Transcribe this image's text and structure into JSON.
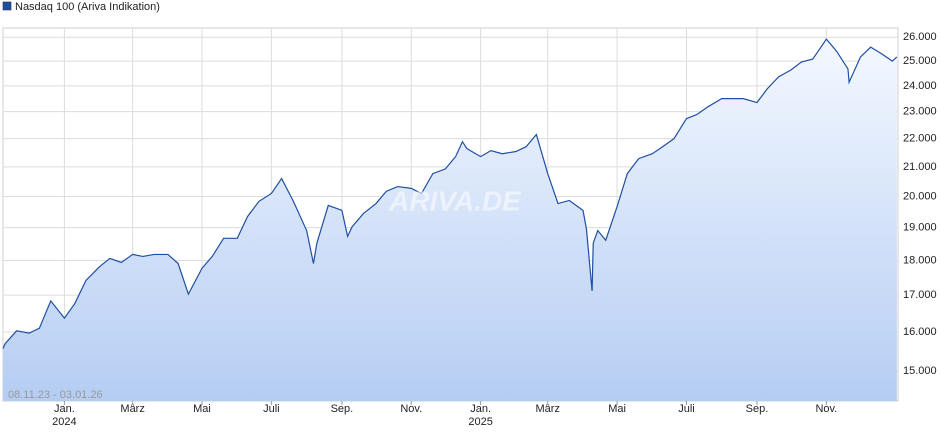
{
  "chart_data": {
    "type": "line",
    "series": [
      {
        "name": "Nasdaq 100 (Ariva Indikation)",
        "color": "#1f4fa3",
        "values": [
          15570,
          15700,
          16030,
          15970,
          16100,
          16840,
          16370,
          16760,
          17420,
          17820,
          18060,
          17940,
          18180,
          18120,
          18180,
          18180,
          17910,
          17030,
          17770,
          18120,
          18670,
          18670,
          19350,
          19840,
          20100,
          20600,
          19870,
          18910,
          17910,
          18520,
          19710,
          19550,
          18730,
          19030,
          19450,
          19770,
          20170,
          20330,
          20270,
          20100,
          20770,
          20930,
          21360,
          21890,
          21640,
          21360,
          21570,
          21460,
          21540,
          21710,
          22150,
          20770,
          19770,
          19870,
          19550,
          18970,
          17470,
          17120,
          18520,
          18910,
          18610,
          19670,
          20770,
          21290,
          21460,
          21710,
          22000,
          22740,
          22890,
          23190,
          23500,
          23500,
          23500,
          23350,
          23880,
          24360,
          24640,
          24960,
          25080,
          25700,
          25920,
          25410,
          24680,
          24140,
          25170,
          25580,
          25290,
          25000,
          25170
        ]
      }
    ],
    "x": [
      "2023-11-08",
      "2023-11-10",
      "2023-11-20",
      "2023-12-01",
      "2023-12-10",
      "2023-12-20",
      "2024-01-01",
      "2024-01-10",
      "2024-01-20",
      "2024-02-01",
      "2024-02-10",
      "2024-02-20",
      "2024-03-01",
      "2024-03-10",
      "2024-03-20",
      "2024-04-01",
      "2024-04-10",
      "2024-04-19",
      "2024-05-01",
      "2024-05-10",
      "2024-05-20",
      "2024-06-01",
      "2024-06-10",
      "2024-06-20",
      "2024-07-01",
      "2024-07-10",
      "2024-07-20",
      "2024-08-01",
      "2024-08-07",
      "2024-08-10",
      "2024-08-20",
      "2024-09-01",
      "2024-09-06",
      "2024-09-10",
      "2024-09-20",
      "2024-10-01",
      "2024-10-10",
      "2024-10-20",
      "2024-11-01",
      "2024-11-10",
      "2024-11-20",
      "2024-12-01",
      "2024-12-10",
      "2024-12-16",
      "2024-12-20",
      "2025-01-01",
      "2025-01-10",
      "2025-01-20",
      "2025-02-01",
      "2025-02-10",
      "2025-02-19",
      "2025-03-01",
      "2025-03-10",
      "2025-03-20",
      "2025-04-01",
      "2025-04-04",
      "2025-04-08",
      "2025-04-09",
      "2025-04-10",
      "2025-04-14",
      "2025-04-21",
      "2025-05-01",
      "2025-05-10",
      "2025-05-20",
      "2025-06-01",
      "2025-06-10",
      "2025-06-20",
      "2025-07-01",
      "2025-07-10",
      "2025-07-20",
      "2025-08-01",
      "2025-08-10",
      "2025-08-20",
      "2025-09-01",
      "2025-09-10",
      "2025-09-20",
      "2025-10-01",
      "2025-10-10",
      "2025-10-20",
      "2025-10-29",
      "2025-11-01",
      "2025-11-10",
      "2025-11-20",
      "2025-11-21",
      "2025-12-01",
      "2025-12-10",
      "2025-12-20",
      "2025-12-29",
      "2026-01-02"
    ],
    "xlim": [
      "2023-11-08",
      "2026-01-03"
    ],
    "xticks": [
      {
        "value": "2024-01-01",
        "label": "Jan."
      },
      {
        "value": "2024-03-01",
        "label": "März"
      },
      {
        "value": "2024-05-01",
        "label": "Mai"
      },
      {
        "value": "2024-07-01",
        "label": "Juli"
      },
      {
        "value": "2024-09-01",
        "label": "Sep."
      },
      {
        "value": "2024-11-01",
        "label": "Nov."
      },
      {
        "value": "2025-01-01",
        "label": "Jan."
      },
      {
        "value": "2025-03-01",
        "label": "März"
      },
      {
        "value": "2025-05-01",
        "label": "Mai"
      },
      {
        "value": "2025-07-01",
        "label": "Juli"
      },
      {
        "value": "2025-09-01",
        "label": "Sep."
      },
      {
        "value": "2025-11-01",
        "label": "Nov."
      }
    ],
    "year_labels": [
      {
        "value": "2024-01-01",
        "label": "2024"
      },
      {
        "value": "2025-01-01",
        "label": "2025"
      }
    ],
    "ylim": [
      14280,
      26400
    ],
    "yticks": [
      {
        "value": 15000,
        "label": "15.000"
      },
      {
        "value": 16000,
        "label": "16.000"
      },
      {
        "value": 17000,
        "label": "17.000"
      },
      {
        "value": 18000,
        "label": "18.000"
      },
      {
        "value": 19000,
        "label": "19.000"
      },
      {
        "value": 20000,
        "label": "20.000"
      },
      {
        "value": 21000,
        "label": "21.000"
      },
      {
        "value": 22000,
        "label": "22.000"
      },
      {
        "value": 23000,
        "label": "23.000"
      },
      {
        "value": 24000,
        "label": "24.000"
      },
      {
        "value": 25000,
        "label": "25.000"
      },
      {
        "value": 26000,
        "label": "26.000"
      }
    ],
    "log_scale": true,
    "grid": true,
    "date_range": "08.11.23 - 03.01.26",
    "watermark": "ARIVA.DE"
  }
}
